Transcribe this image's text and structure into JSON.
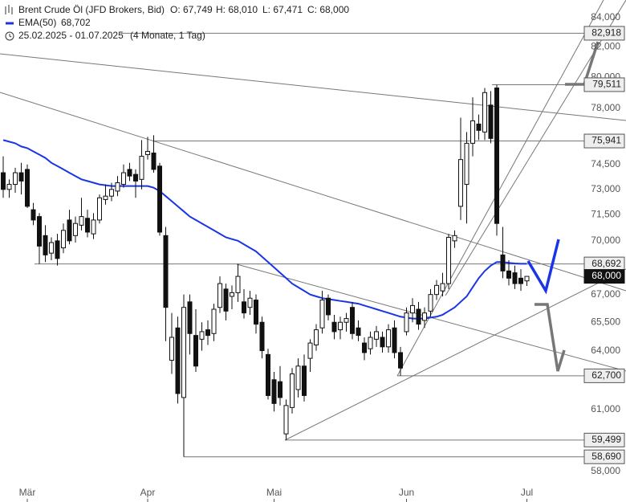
{
  "chart_data": {
    "type": "candlestick",
    "title": "Brent Crude Öl (JFD Brokers, Bid)",
    "ohlc_labels": [
      "O: 67,749",
      "H: 68,010",
      "L: 67,471",
      "C: 68,000"
    ],
    "subtitle": "25.02.2025 - 01.07.2025",
    "period": "(4 Monate, 1 Tag)",
    "log_scale": true,
    "ylim": [
      57.5,
      85.2
    ],
    "yticks": [
      {
        "value": 58,
        "label": "58,000"
      },
      {
        "value": 61,
        "label": "61,000"
      },
      {
        "value": 64,
        "label": "64,000"
      },
      {
        "value": 65.5,
        "label": "65,500"
      },
      {
        "value": 67,
        "label": "67,000"
      },
      {
        "value": 70,
        "label": "70,000"
      },
      {
        "value": 71.5,
        "label": "71,500"
      },
      {
        "value": 73,
        "label": "73,000"
      },
      {
        "value": 74.5,
        "label": "74,500"
      },
      {
        "value": 78,
        "label": "78,000"
      },
      {
        "value": 80,
        "label": "80,000"
      },
      {
        "value": 82,
        "label": "82,000"
      },
      {
        "value": 84,
        "label": "84,000"
      }
    ],
    "categories": [
      null,
      null,
      null,
      null,
      "Mär",
      null,
      null,
      null,
      null,
      null,
      null,
      null,
      null,
      null,
      null,
      null,
      null,
      null,
      null,
      null,
      null,
      null,
      null,
      null,
      "Apr",
      null,
      null,
      null,
      null,
      null,
      null,
      null,
      null,
      null,
      null,
      null,
      null,
      null,
      null,
      null,
      null,
      null,
      null,
      null,
      null,
      "Mai",
      null,
      null,
      null,
      null,
      null,
      null,
      null,
      null,
      null,
      null,
      null,
      null,
      null,
      null,
      null,
      null,
      null,
      null,
      null,
      null,
      null,
      "Jun",
      null,
      null,
      null,
      null,
      null,
      null,
      null,
      null,
      null,
      null,
      null,
      null,
      null,
      null,
      null,
      null,
      null,
      null,
      null,
      "Jul"
    ],
    "open": [
      74.0,
      73.0,
      73.3,
      74.0,
      74.2,
      71.8,
      71.4,
      70.3,
      69.3,
      70.0,
      69.6,
      71.2,
      70.3,
      70.9,
      71.3,
      70.4,
      71.2,
      72.4,
      72.6,
      72.9,
      73.3,
      74.2,
      73.9,
      73.6,
      75.1,
      75.2,
      74.4,
      70.3,
      63.5,
      65.2,
      61.6,
      66.6,
      64.8,
      64.6,
      65.1,
      64.9,
      66.3,
      67.3,
      66.9,
      67.1,
      66.6,
      66.3,
      66.7,
      65.5,
      63.8,
      62.5,
      62.4,
      59.8,
      61.1,
      62.0,
      63.2,
      63.6,
      64.3,
      65.2,
      66.8,
      65.5,
      65.1,
      65.5,
      66.3,
      65.2,
      64.4,
      64.1,
      64.6,
      64.7,
      64.2,
      65.2,
      63.9,
      65.0,
      66.0,
      66.2,
      65.6,
      66.1,
      67.0,
      67.2,
      67.6,
      70.0,
      72.0,
      73.3,
      75.8,
      77.0,
      76.5,
      78.2,
      79.3,
      69.2,
      68.3,
      68.2,
      67.9,
      67.749
    ],
    "high": [
      75.0,
      73.6,
      74.3,
      74.6,
      74.5,
      72.2,
      71.6,
      70.9,
      70.2,
      70.4,
      71.0,
      71.8,
      71.4,
      72.5,
      71.8,
      71.6,
      72.7,
      73.3,
      73.4,
      73.8,
      74.5,
      74.6,
      74.2,
      76.0,
      76.2,
      76.3,
      74.6,
      70.8,
      66.0,
      65.8,
      67.0,
      67.0,
      66.2,
      65.5,
      65.6,
      66.5,
      68.0,
      67.6,
      67.5,
      68.7,
      67.3,
      67.2,
      67.0,
      65.8,
      64.1,
      62.9,
      63.2,
      61.5,
      63.1,
      63.6,
      63.8,
      64.6,
      65.4,
      67.2,
      67.0,
      65.9,
      65.8,
      66.0,
      66.6,
      65.6,
      64.7,
      65.0,
      65.3,
      65.0,
      65.4,
      65.6,
      64.2,
      66.3,
      66.8,
      66.6,
      66.3,
      67.3,
      67.8,
      68.2,
      70.4,
      70.6,
      77.4,
      76.5,
      78.7,
      77.6,
      79.3,
      79.1,
      79.51,
      70.8,
      68.9,
      68.6,
      68.4,
      68.01
    ],
    "low": [
      72.5,
      72.5,
      72.8,
      72.7,
      71.9,
      70.9,
      68.7,
      68.8,
      68.9,
      68.6,
      69.3,
      69.8,
      69.9,
      70.6,
      70.2,
      70.1,
      71.0,
      72.1,
      72.3,
      72.6,
      73.1,
      73.5,
      72.5,
      73.0,
      74.8,
      74.0,
      70.3,
      64.5,
      62.8,
      61.3,
      58.69,
      63.8,
      62.9,
      64.0,
      64.3,
      64.5,
      66.0,
      65.6,
      66.2,
      66.6,
      65.7,
      65.9,
      64.9,
      63.6,
      61.5,
      60.9,
      61.2,
      59.5,
      60.8,
      61.6,
      61.4,
      62.9,
      64.0,
      64.9,
      65.6,
      64.6,
      64.6,
      65.0,
      64.6,
      64.5,
      63.5,
      63.8,
      64.2,
      63.9,
      63.9,
      63.6,
      62.7,
      64.8,
      65.5,
      65.1,
      65.2,
      65.8,
      66.7,
      66.9,
      67.3,
      69.6,
      71.2,
      71.0,
      75.0,
      76.0,
      76.0,
      75.8,
      70.3,
      67.9,
      67.5,
      67.3,
      67.2,
      67.471
    ],
    "close": [
      73.0,
      73.3,
      74.0,
      73.5,
      72.0,
      71.2,
      69.7,
      69.2,
      69.9,
      69.0,
      70.6,
      70.0,
      71.0,
      71.4,
      70.5,
      71.2,
      72.5,
      72.6,
      73.0,
      73.4,
      74.0,
      73.8,
      73.5,
      75.0,
      75.3,
      74.2,
      70.5,
      66.3,
      64.7,
      61.8,
      66.3,
      64.9,
      63.2,
      65.0,
      64.8,
      66.2,
      67.6,
      66.1,
      67.1,
      68.0,
      66.0,
      66.8,
      65.4,
      64.0,
      61.7,
      61.3,
      61.6,
      61.2,
      62.8,
      63.2,
      61.7,
      64.4,
      65.1,
      66.7,
      65.9,
      65.0,
      65.5,
      65.7,
      64.9,
      64.8,
      63.9,
      64.7,
      65.0,
      64.2,
      65.1,
      63.9,
      63.1,
      66.0,
      66.4,
      65.4,
      66.0,
      67.0,
      67.5,
      67.6,
      70.2,
      70.3,
      74.8,
      75.8,
      77.2,
      76.6,
      79.0,
      76.1,
      71.0,
      68.3,
      67.9,
      67.6,
      67.6,
      68.0
    ],
    "close_label": "68,000",
    "ema": {
      "name": "EMA(50)",
      "color": "#1a35e6",
      "value_label": "68,702",
      "values": [
        76.0,
        75.9,
        75.8,
        75.6,
        75.5,
        75.3,
        75.1,
        74.9,
        74.6,
        74.4,
        74.2,
        74.0,
        73.8,
        73.6,
        73.5,
        73.4,
        73.3,
        73.25,
        73.2,
        73.2,
        73.2,
        73.2,
        73.2,
        73.2,
        73.2,
        73.1,
        72.9,
        72.6,
        72.3,
        72.0,
        71.7,
        71.4,
        71.2,
        71.0,
        70.8,
        70.6,
        70.4,
        70.2,
        70.1,
        70.0,
        69.8,
        69.6,
        69.4,
        69.1,
        68.8,
        68.5,
        68.2,
        67.9,
        67.6,
        67.4,
        67.2,
        67.0,
        66.9,
        66.8,
        66.75,
        66.7,
        66.65,
        66.6,
        66.55,
        66.5,
        66.4,
        66.3,
        66.2,
        66.1,
        66.0,
        65.9,
        65.8,
        65.75,
        65.7,
        65.7,
        65.7,
        65.75,
        65.8,
        65.9,
        66.1,
        66.3,
        66.6,
        66.9,
        67.4,
        67.9,
        68.3,
        68.6,
        68.8,
        68.8,
        68.75,
        68.72,
        68.7,
        68.702
      ]
    },
    "levels": [
      {
        "value": 82.918,
        "label": "82,918"
      },
      {
        "value": 79.511,
        "label": "79,511"
      },
      {
        "value": 75.941,
        "label": "75,941"
      },
      {
        "value": 68.692,
        "label": "68,692"
      },
      {
        "value": 62.7,
        "label": "62,700"
      },
      {
        "value": 59.499,
        "label": "59,499"
      },
      {
        "value": 58.69,
        "label": "58,690"
      }
    ]
  }
}
